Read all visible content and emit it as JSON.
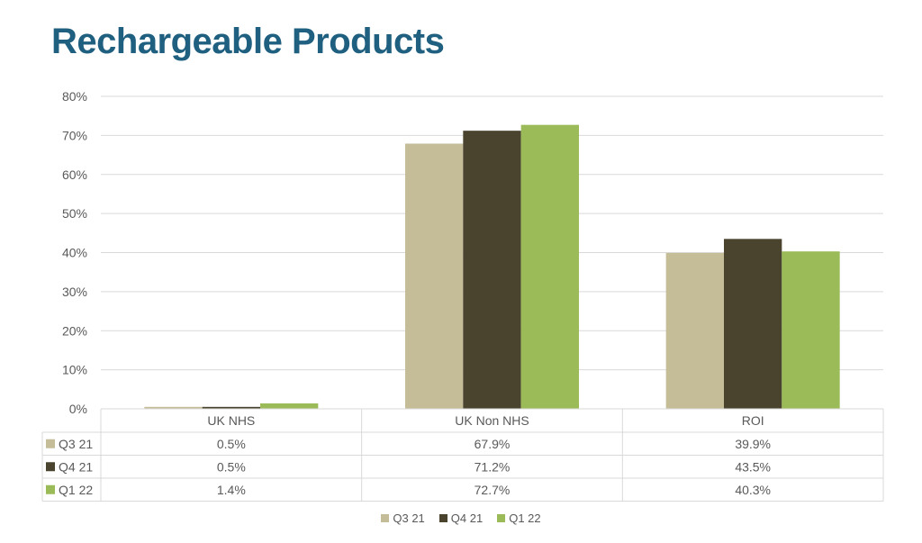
{
  "slide": {
    "title": "Rechargeable Products"
  },
  "colors": {
    "title": "#1f5f7f",
    "grid": "#d9d9d9",
    "text": "#595959"
  },
  "chart_data": {
    "type": "bar",
    "title": "",
    "xlabel": "",
    "ylabel": "",
    "categories": [
      "UK NHS",
      "UK Non NHS",
      "ROI"
    ],
    "series": [
      {
        "name": "Q3 21",
        "color": "#c4bd97",
        "values": [
          0.5,
          67.9,
          39.9
        ],
        "labels": [
          "0.5%",
          "67.9%",
          "39.9%"
        ]
      },
      {
        "name": "Q4 21",
        "color": "#4a432d",
        "values": [
          0.5,
          71.2,
          43.5
        ],
        "labels": [
          "0.5%",
          "71.2%",
          "43.5%"
        ]
      },
      {
        "name": "Q1 22",
        "color": "#9bbb59",
        "values": [
          1.4,
          72.7,
          40.3
        ],
        "labels": [
          "1.4%",
          "72.7%",
          "40.3%"
        ]
      }
    ],
    "ylim": [
      0,
      80
    ],
    "yticks": [
      "0%",
      "10%",
      "20%",
      "30%",
      "40%",
      "50%",
      "60%",
      "70%",
      "80%"
    ],
    "grid": true,
    "data_table": true,
    "legend": "bottom-center"
  }
}
